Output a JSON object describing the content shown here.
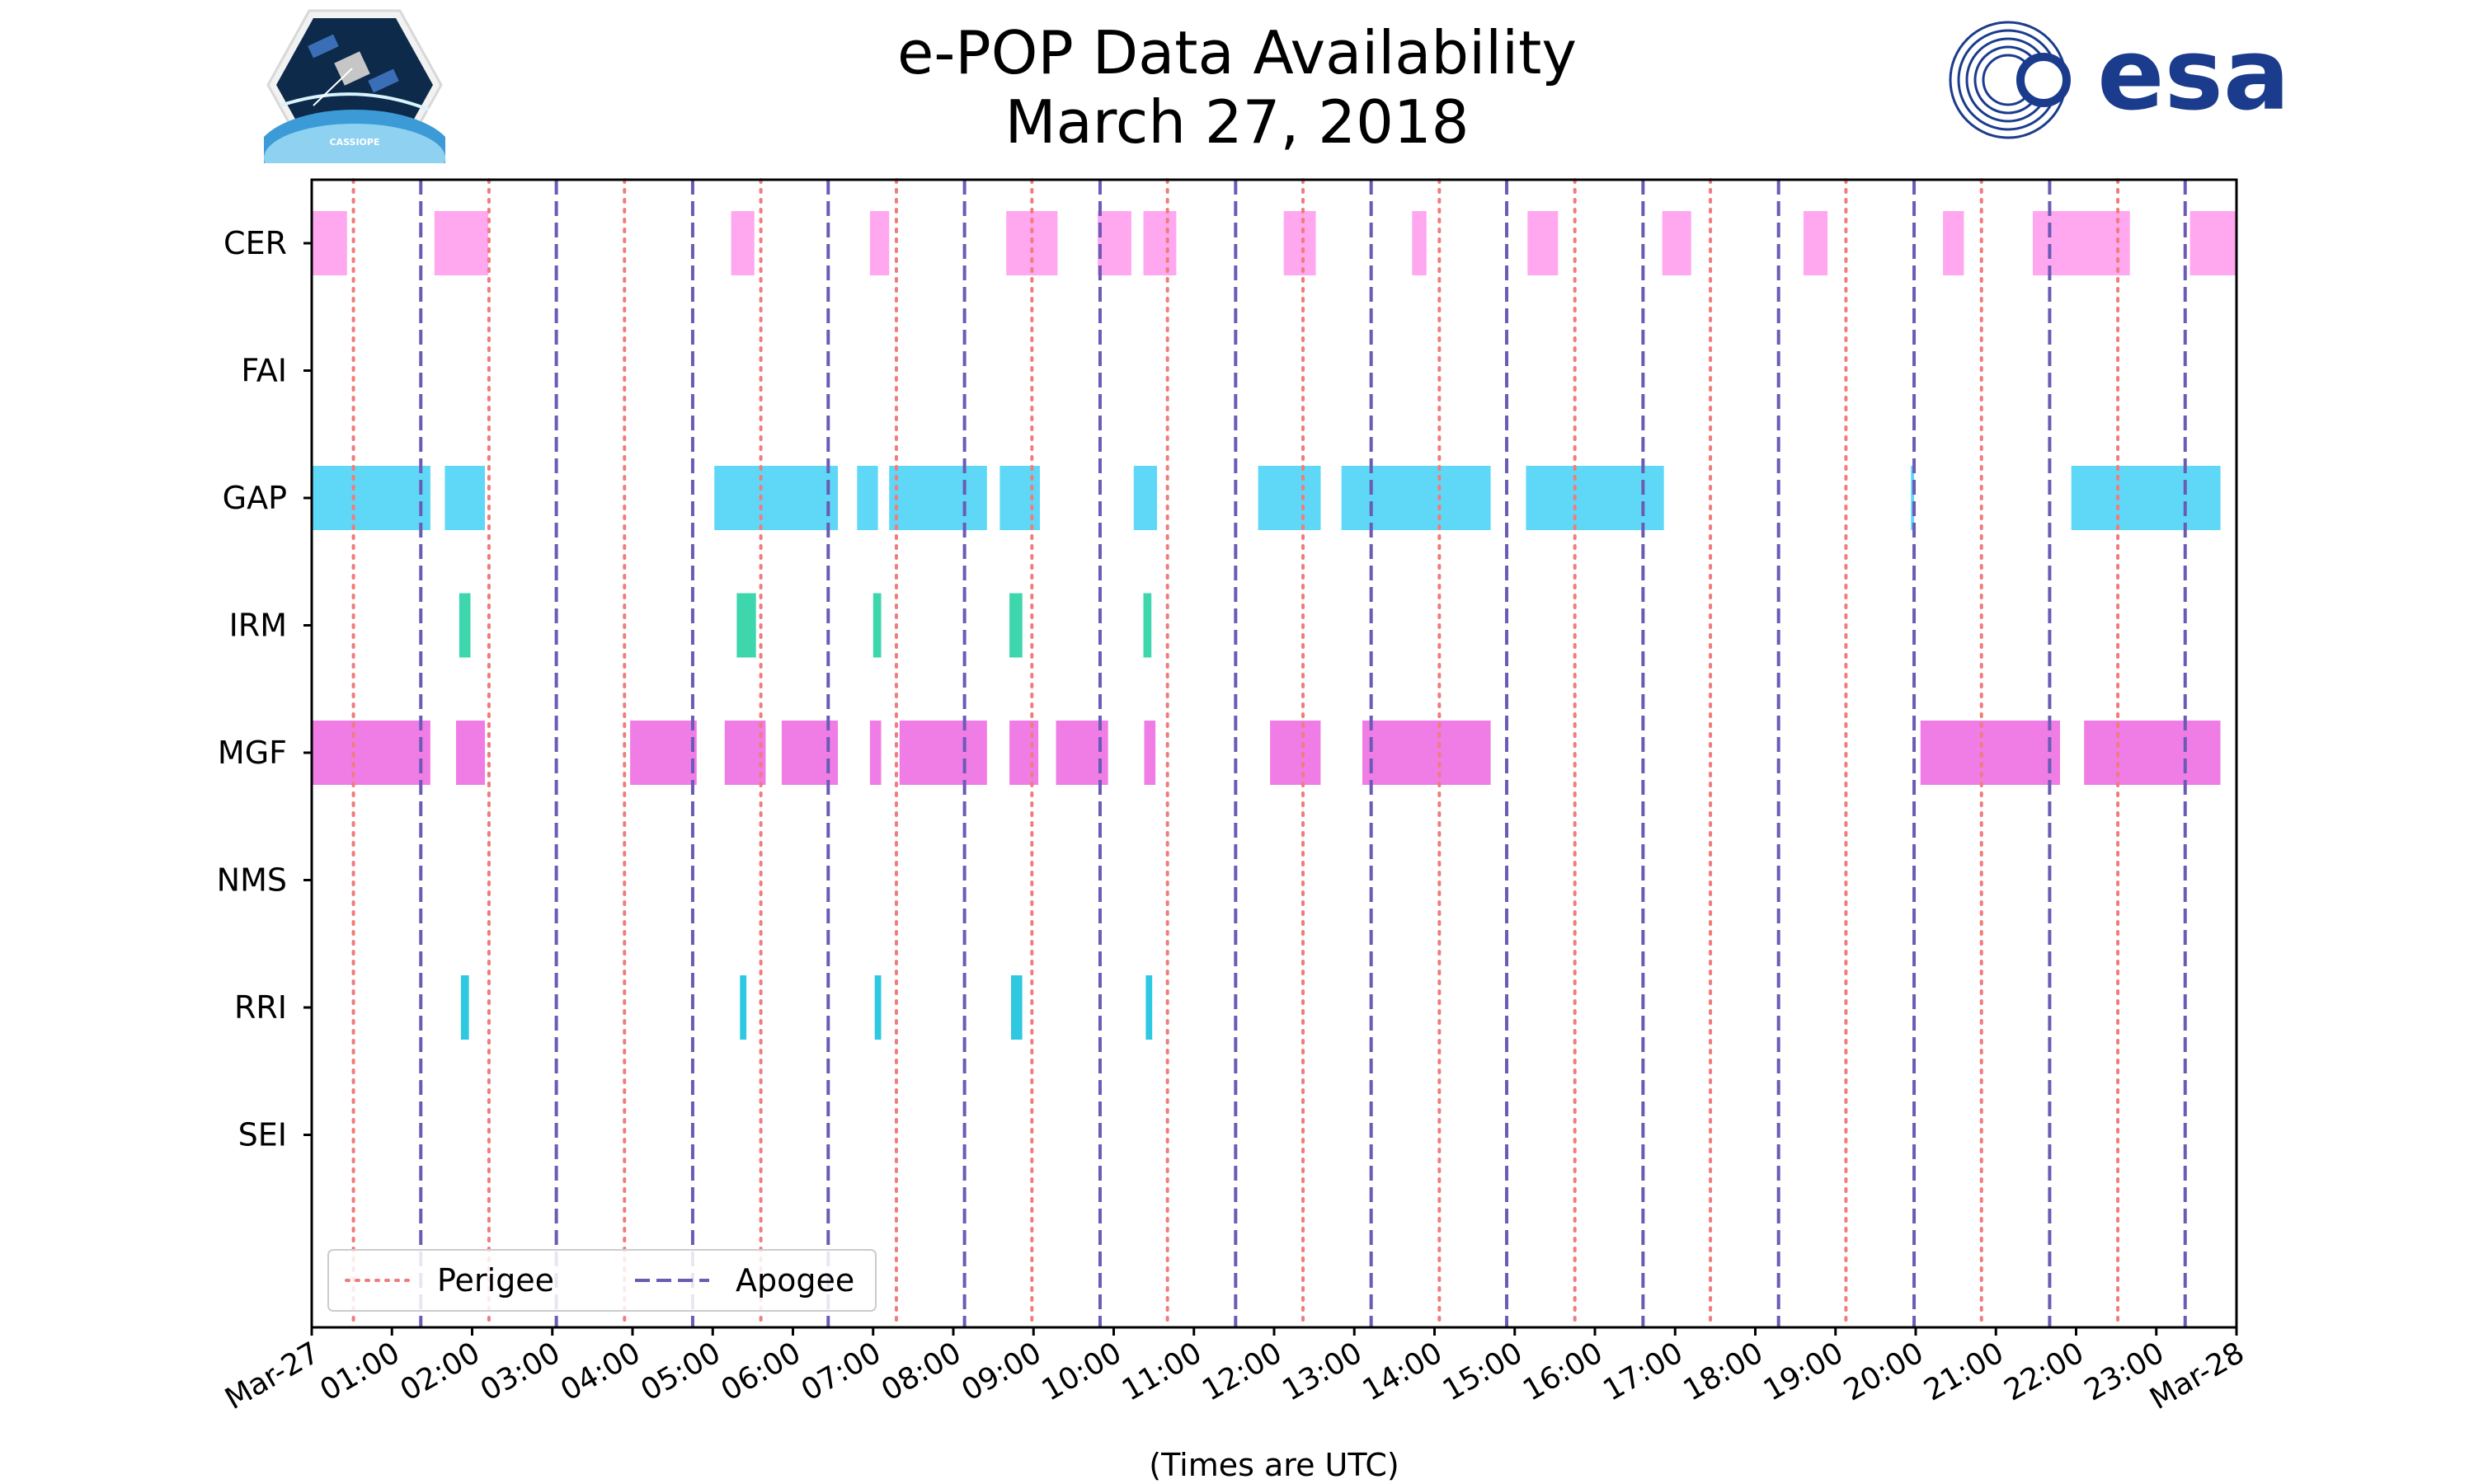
{
  "colors": {
    "perigee": "#f07c7c",
    "apogee": "#6b5bb5",
    "CER": "#ffa8f0",
    "GAP": "#5fd8f7",
    "IRM": "#3dd6ad",
    "MGF": "#f07de6",
    "RRI": "#2ec8e0",
    "esa_blue": "#1b3c8c"
  },
  "logos": {
    "left_icon": "cassiope-satellite-logo",
    "left_caption": "CASSIOPE",
    "right_icon": "esa-logo",
    "right_text": "esa"
  },
  "chart_data": {
    "type": "timeline",
    "title": "e-POP Data Availability",
    "subtitle": "March 27, 2018",
    "xlabel": "(Times are UTC)",
    "xlim_hours": [
      0,
      24
    ],
    "x_tick_labels": [
      "Mar-27",
      "01:00",
      "02:00",
      "03:00",
      "04:00",
      "05:00",
      "06:00",
      "07:00",
      "08:00",
      "09:00",
      "10:00",
      "11:00",
      "12:00",
      "13:00",
      "14:00",
      "15:00",
      "16:00",
      "17:00",
      "18:00",
      "19:00",
      "20:00",
      "21:00",
      "22:00",
      "23:00",
      "Mar-28"
    ],
    "categories": [
      "CER",
      "FAI",
      "GAP",
      "IRM",
      "MGF",
      "NMS",
      "RRI",
      "SEI"
    ],
    "perigee_hours": [
      0.52,
      2.21,
      3.9,
      5.6,
      7.29,
      8.98,
      10.67,
      12.36,
      14.06,
      15.75,
      17.44,
      19.13,
      20.82,
      22.52
    ],
    "apogee_hours": [
      1.36,
      3.05,
      4.75,
      6.44,
      8.14,
      9.83,
      11.52,
      13.21,
      14.9,
      16.6,
      18.29,
      19.98,
      21.67,
      23.36
    ],
    "legend": {
      "position": "bottom-left",
      "entries": [
        "Perigee",
        "Apogee"
      ]
    },
    "series": [
      {
        "name": "CER",
        "intervals": [
          [
            0,
            0.44
          ],
          [
            1.53,
            2.2
          ],
          [
            5.23,
            5.52
          ],
          [
            6.96,
            7.2
          ],
          [
            8.66,
            9.3
          ],
          [
            9.8,
            10.22
          ],
          [
            10.37,
            10.78
          ],
          [
            12.12,
            12.52
          ],
          [
            13.72,
            13.9
          ],
          [
            15.16,
            15.54
          ],
          [
            16.84,
            17.2
          ],
          [
            18.6,
            18.9
          ],
          [
            20.34,
            20.6
          ],
          [
            21.46,
            22.67
          ],
          [
            23.42,
            24
          ]
        ]
      },
      {
        "name": "FAI",
        "intervals": []
      },
      {
        "name": "GAP",
        "intervals": [
          [
            0,
            1.48
          ],
          [
            1.66,
            2.16
          ],
          [
            5.02,
            6.56
          ],
          [
            6.8,
            7.06
          ],
          [
            7.2,
            8.42
          ],
          [
            8.58,
            9.08
          ],
          [
            10.25,
            10.54
          ],
          [
            11.8,
            12.58
          ],
          [
            12.84,
            14.7
          ],
          [
            15.14,
            16.86
          ],
          [
            19.94,
            19.98
          ],
          [
            21.94,
            23.8
          ]
        ]
      },
      {
        "name": "IRM",
        "intervals": [
          [
            1.84,
            1.98
          ],
          [
            5.3,
            5.54
          ],
          [
            7.0,
            7.1
          ],
          [
            8.7,
            8.86
          ],
          [
            10.37,
            10.47
          ]
        ]
      },
      {
        "name": "MGF",
        "intervals": [
          [
            0,
            1.48
          ],
          [
            1.8,
            2.16
          ],
          [
            3.97,
            4.8
          ],
          [
            5.15,
            5.66
          ],
          [
            5.86,
            6.56
          ],
          [
            6.96,
            7.1
          ],
          [
            7.33,
            8.42
          ],
          [
            8.7,
            9.06
          ],
          [
            9.28,
            9.93
          ],
          [
            10.38,
            10.52
          ],
          [
            11.95,
            12.58
          ],
          [
            13.1,
            14.7
          ],
          [
            20.06,
            21.8
          ],
          [
            22.1,
            23.8
          ]
        ]
      },
      {
        "name": "NMS",
        "intervals": []
      },
      {
        "name": "RRI",
        "intervals": [
          [
            1.86,
            1.96
          ],
          [
            5.34,
            5.42
          ],
          [
            7.02,
            7.1
          ],
          [
            8.72,
            8.86
          ],
          [
            10.4,
            10.48
          ]
        ]
      },
      {
        "name": "SEI",
        "intervals": []
      }
    ]
  }
}
